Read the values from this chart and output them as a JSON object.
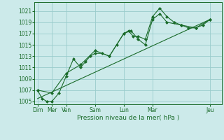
{
  "xlabel": "Pression niveau de la mer( hPa )",
  "bg_color": "#cceaea",
  "grid_color": "#99cccc",
  "line_color": "#1a6b2a",
  "ylim": [
    1004.5,
    1022.5
  ],
  "yticks": [
    1005,
    1007,
    1009,
    1011,
    1013,
    1015,
    1017,
    1019,
    1021
  ],
  "xtick_pos": [
    0,
    1,
    2,
    4,
    6,
    8,
    12
  ],
  "xtick_labs": [
    "Dim",
    "Mer",
    "Ven",
    "Sam",
    "Lun",
    "Mar",
    "Jeu"
  ],
  "xlim": [
    -0.2,
    12.8
  ],
  "trend_x": [
    0,
    12
  ],
  "trend_y": [
    1005.5,
    1019.5
  ],
  "line1_x": [
    0,
    0.33,
    0.66,
    1,
    1.5,
    2,
    2.5,
    3,
    3.33,
    3.66,
    4,
    4.5,
    5,
    5.5,
    6,
    6.33,
    6.66,
    7,
    7.5,
    8,
    8.5,
    9,
    9.5,
    10,
    10.5,
    11,
    11.5,
    12
  ],
  "line1_y": [
    1007,
    1005.5,
    1005,
    1005,
    1006.5,
    1009.5,
    1012.5,
    1011,
    1012,
    1013,
    1013.5,
    1013.5,
    1013,
    1015,
    1017,
    1017.5,
    1016.5,
    1016.5,
    1016,
    1020,
    1021.5,
    1020,
    1019,
    1018.5,
    1018,
    1018,
    1018.5,
    1019.5
  ],
  "line2_x": [
    0,
    1,
    2,
    3,
    4,
    5,
    6,
    6.5,
    7,
    7.5,
    8,
    8.5,
    9,
    10,
    11,
    12
  ],
  "line2_y": [
    1007,
    1006.5,
    1010,
    1011.5,
    1014,
    1013,
    1017,
    1017.5,
    1016,
    1015,
    1019.5,
    1020.5,
    1019,
    1018.5,
    1018,
    1019.5
  ]
}
